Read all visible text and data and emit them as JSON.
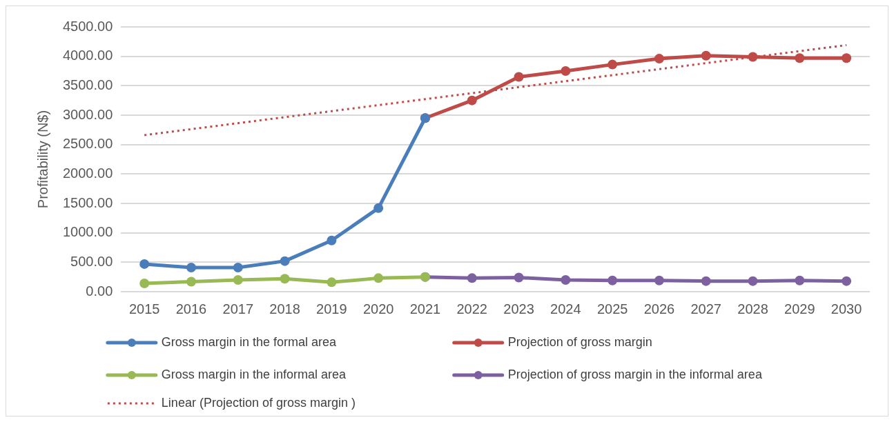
{
  "chart_data": {
    "type": "line",
    "ylabel": "Profitability (N$)",
    "x": [
      2015,
      2016,
      2017,
      2018,
      2019,
      2020,
      2021,
      2022,
      2023,
      2024,
      2025,
      2026,
      2027,
      2028,
      2029,
      2030
    ],
    "series": [
      {
        "name": "Gross margin in the formal area",
        "color": "#4a7ebb",
        "values": [
          470,
          410,
          410,
          520,
          870,
          1420,
          2950,
          null,
          null,
          null,
          null,
          null,
          null,
          null,
          null,
          null
        ]
      },
      {
        "name": "Projection of gross margin",
        "color": "#be4b48",
        "values": [
          null,
          null,
          null,
          null,
          null,
          null,
          2950,
          3250,
          3650,
          3750,
          3860,
          3960,
          4010,
          3990,
          3970,
          3970
        ]
      },
      {
        "name": "Gross margin in the informal area",
        "color": "#98b954",
        "values": [
          140,
          170,
          200,
          220,
          160,
          230,
          250,
          null,
          null,
          null,
          null,
          null,
          null,
          null,
          null,
          null
        ]
      },
      {
        "name": "Projection of gross margin in the informal area",
        "color": "#7d60a0",
        "values": [
          null,
          null,
          null,
          null,
          null,
          null,
          250,
          230,
          240,
          200,
          190,
          190,
          180,
          180,
          190,
          180
        ]
      },
      {
        "name": "Linear (Projection of gross margin )",
        "color": "#be4b48",
        "type": "line",
        "marker": "none",
        "line_style": "dotted",
        "x": [
          2015,
          2030
        ],
        "values": [
          2660,
          4190
        ]
      }
    ],
    "xlim": [
      2014.5,
      2030.5
    ],
    "xticks": [
      2015,
      2016,
      2017,
      2018,
      2019,
      2020,
      2021,
      2022,
      2023,
      2024,
      2025,
      2026,
      2027,
      2028,
      2029,
      2030
    ],
    "ylim": [
      0,
      4500
    ],
    "yticks": [
      {
        "value": 0,
        "label": "0.00"
      },
      {
        "value": 500,
        "label": "500.00"
      },
      {
        "value": 1000,
        "label": "1000.00"
      },
      {
        "value": 1500,
        "label": "1500.00"
      },
      {
        "value": 2000,
        "label": "2000.00"
      },
      {
        "value": 2500,
        "label": "2500.00"
      },
      {
        "value": 3000,
        "label": "3000.00"
      },
      {
        "value": 3500,
        "label": "3500.00"
      },
      {
        "value": 4000,
        "label": "4000.00"
      },
      {
        "value": 4500,
        "label": "4500.00"
      }
    ],
    "grid": "y",
    "legend": "bottom",
    "marker": "circle",
    "line_style": "solid"
  }
}
